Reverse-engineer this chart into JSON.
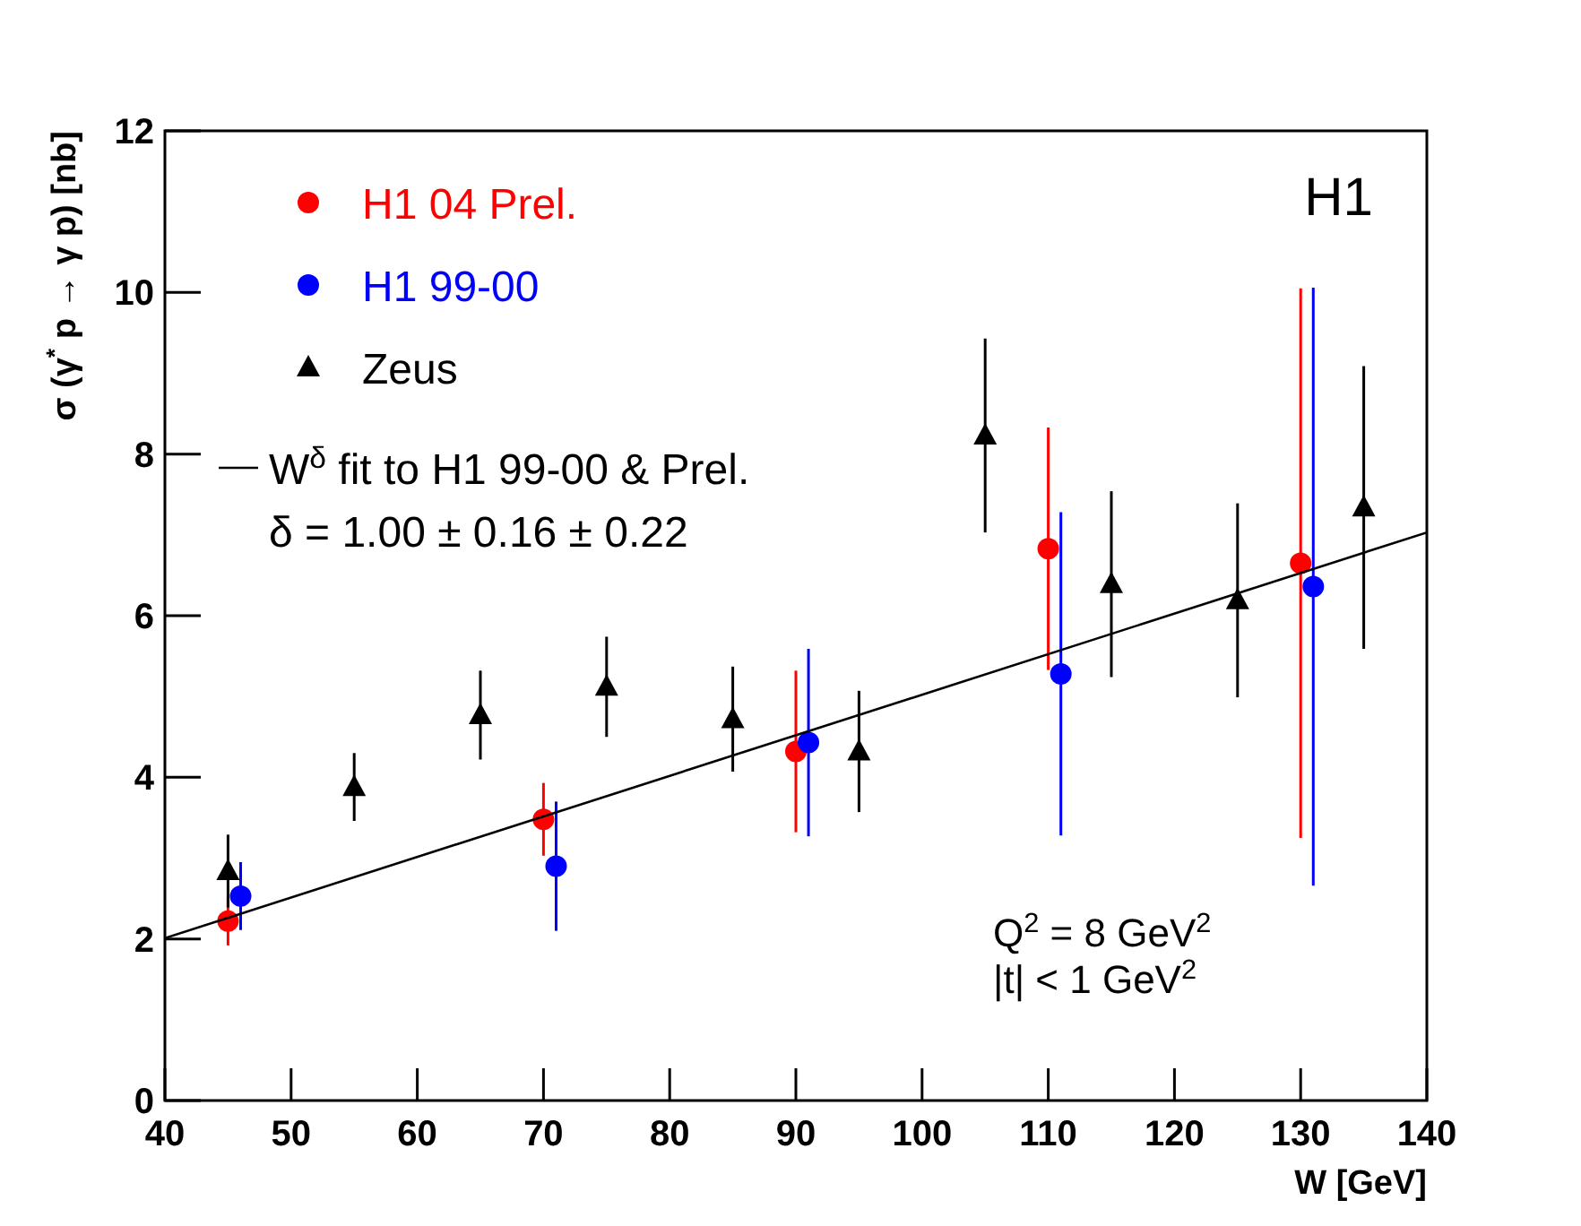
{
  "chart_data": {
    "type": "scatter",
    "xlabel": "W [GeV]",
    "ylabel": "σ (γ$^{*}$ p → γ p) [nb]",
    "xlim": [
      40,
      140
    ],
    "xticks": [
      40,
      50,
      60,
      70,
      80,
      90,
      100,
      110,
      120,
      130,
      140
    ],
    "ylim": [
      0,
      12
    ],
    "yticks": [
      0,
      2,
      4,
      6,
      8,
      10,
      12
    ],
    "grid": false,
    "legend": "top left",
    "series": [
      {
        "name": "H1 04 Prel.",
        "color": "#ff0000",
        "marker": "circle",
        "x": [
          45,
          70,
          90,
          110,
          130
        ],
        "values": [
          2.22,
          3.48,
          4.32,
          6.83,
          6.65
        ],
        "errors": [
          0.3,
          0.45,
          1.0,
          1.5,
          3.4
        ]
      },
      {
        "name": "H1 99-00",
        "color": "#0000ff",
        "marker": "circle",
        "x": [
          46,
          71,
          91,
          111,
          131
        ],
        "values": [
          2.53,
          2.9,
          4.43,
          5.28,
          6.36
        ],
        "errors": [
          0.42,
          0.8,
          1.16,
          2.0,
          3.7
        ]
      },
      {
        "name": "Zeus",
        "color": "#000000",
        "marker": "triangle",
        "x": [
          45,
          55,
          65,
          75,
          85,
          95,
          105,
          115,
          125,
          135
        ],
        "values": [
          2.84,
          3.88,
          4.77,
          5.12,
          4.72,
          4.32,
          8.23,
          6.39,
          6.19,
          7.34
        ],
        "errors": [
          0.45,
          0.42,
          0.55,
          0.62,
          0.65,
          0.75,
          1.2,
          1.15,
          1.2,
          1.75
        ]
      },
      {
        "name": "W$^{δ}$ fit to H1 99-00 & Prel.",
        "type": "line",
        "color": "#000000",
        "line_style": "solid",
        "marker": "none",
        "x": [
          40,
          140
        ],
        "values": [
          2.01,
          7.03
        ]
      }
    ],
    "annotations": [
      "H1",
      "δ = 1.00 ± 0.16 ± 0.22",
      "Q$^{2}$ = 8 GeV$^{2}$",
      "|t| < 1 GeV$^{2}$"
    ]
  }
}
